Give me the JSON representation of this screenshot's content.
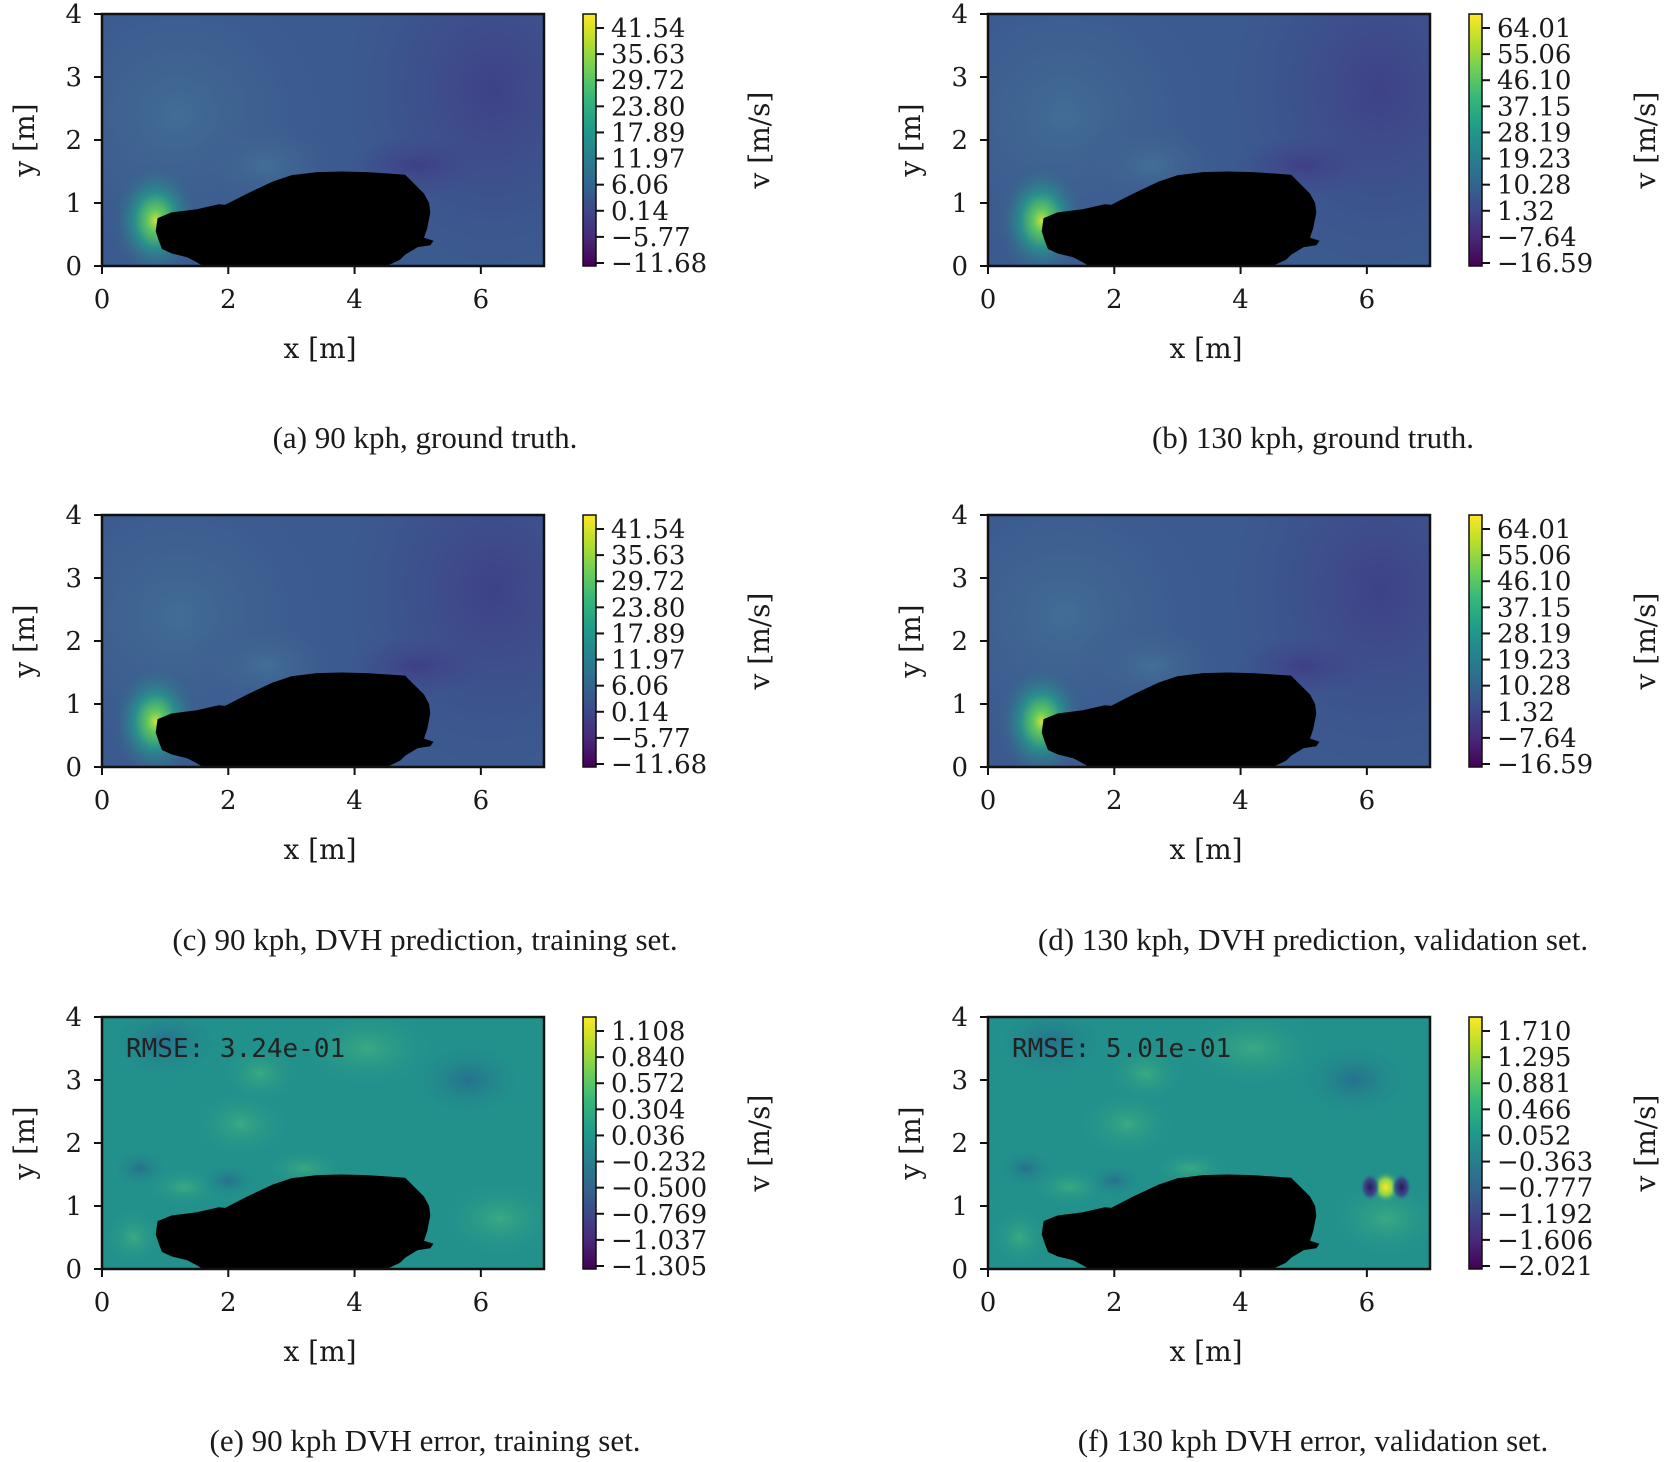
{
  "chart_data": [
    {
      "panel": "a",
      "type": "heatmap",
      "caption": "(a) 90 kph, ground truth.",
      "xlabel": "x [m]",
      "ylabel": "y [m]",
      "xlim": [
        0,
        7
      ],
      "ylim": [
        0,
        4
      ],
      "xticks": [
        "0",
        "2",
        "4",
        "6"
      ],
      "yticks": [
        "0",
        "1",
        "2",
        "3",
        "4"
      ],
      "colorbar": {
        "label": "v [m/s]",
        "ticks": [
          "41.54",
          "35.63",
          "29.72",
          "23.80",
          "17.89",
          "11.97",
          "6.06",
          "0.14",
          "−5.77",
          "−11.68"
        ],
        "range": [
          -11.68,
          41.54
        ]
      },
      "field": "velocity"
    },
    {
      "panel": "b",
      "type": "heatmap",
      "caption": "(b) 130 kph, ground truth.",
      "xlabel": "x [m]",
      "ylabel": "y [m]",
      "xlim": [
        0,
        7
      ],
      "ylim": [
        0,
        4
      ],
      "xticks": [
        "0",
        "2",
        "4",
        "6"
      ],
      "yticks": [
        "0",
        "1",
        "2",
        "3",
        "4"
      ],
      "colorbar": {
        "label": "v [m/s]",
        "ticks": [
          "64.01",
          "55.06",
          "46.10",
          "37.15",
          "28.19",
          "19.23",
          "10.28",
          "1.32",
          "−7.64",
          "−16.59"
        ],
        "range": [
          -16.59,
          64.01
        ]
      },
      "field": "velocity"
    },
    {
      "panel": "c",
      "type": "heatmap",
      "caption": "(c) 90 kph, DVH prediction, training set.",
      "xlabel": "x [m]",
      "ylabel": "y [m]",
      "xlim": [
        0,
        7
      ],
      "ylim": [
        0,
        4
      ],
      "xticks": [
        "0",
        "2",
        "4",
        "6"
      ],
      "yticks": [
        "0",
        "1",
        "2",
        "3",
        "4"
      ],
      "colorbar": {
        "label": "v [m/s]",
        "ticks": [
          "41.54",
          "35.63",
          "29.72",
          "23.80",
          "17.89",
          "11.97",
          "6.06",
          "0.14",
          "−5.77",
          "−11.68"
        ],
        "range": [
          -11.68,
          41.54
        ]
      },
      "field": "velocity"
    },
    {
      "panel": "d",
      "type": "heatmap",
      "caption": "(d) 130 kph, DVH prediction, validation set.",
      "xlabel": "x [m]",
      "ylabel": "y [m]",
      "xlim": [
        0,
        7
      ],
      "ylim": [
        0,
        4
      ],
      "xticks": [
        "0",
        "2",
        "4",
        "6"
      ],
      "yticks": [
        "0",
        "1",
        "2",
        "3",
        "4"
      ],
      "colorbar": {
        "label": "v [m/s]",
        "ticks": [
          "64.01",
          "55.06",
          "46.10",
          "37.15",
          "28.19",
          "19.23",
          "10.28",
          "1.32",
          "−7.64",
          "−16.59"
        ],
        "range": [
          -16.59,
          64.01
        ]
      },
      "field": "velocity"
    },
    {
      "panel": "e",
      "type": "heatmap",
      "caption": "(e) 90 kph DVH error, training set.",
      "annotation": "RMSE: 3.24e-01",
      "xlabel": "x [m]",
      "ylabel": "y [m]",
      "xlim": [
        0,
        7
      ],
      "ylim": [
        0,
        4
      ],
      "xticks": [
        "0",
        "2",
        "4",
        "6"
      ],
      "yticks": [
        "0",
        "1",
        "2",
        "3",
        "4"
      ],
      "colorbar": {
        "label": "v [m/s]",
        "ticks": [
          "1.108",
          "0.840",
          "0.572",
          "0.304",
          "0.036",
          "−0.232",
          "−0.500",
          "−0.769",
          "−1.037",
          "−1.305"
        ],
        "range": [
          -1.305,
          1.108
        ]
      },
      "field": "error"
    },
    {
      "panel": "f",
      "type": "heatmap",
      "caption": "(f) 130 kph DVH error, validation set.",
      "annotation": "RMSE: 5.01e-01",
      "xlabel": "x [m]",
      "ylabel": "y [m]",
      "xlim": [
        0,
        7
      ],
      "ylim": [
        0,
        4
      ],
      "xticks": [
        "0",
        "2",
        "4",
        "6"
      ],
      "yticks": [
        "0",
        "1",
        "2",
        "3",
        "4"
      ],
      "colorbar": {
        "label": "v [m/s]",
        "ticks": [
          "1.710",
          "1.295",
          "0.881",
          "0.466",
          "0.052",
          "−0.363",
          "−0.777",
          "−1.192",
          "−1.606",
          "−2.021"
        ],
        "range": [
          -2.021,
          1.71
        ]
      },
      "field": "error"
    }
  ],
  "colormap": "viridis",
  "colors": {
    "viridis": [
      "#440154",
      "#482878",
      "#3e4989",
      "#31688e",
      "#26828e",
      "#1f9e89",
      "#35b779",
      "#6ece58",
      "#b5de2b",
      "#fde725"
    ],
    "velocity_background": "#3b5a8f",
    "error_background": "#22918c",
    "car": "#000000"
  }
}
